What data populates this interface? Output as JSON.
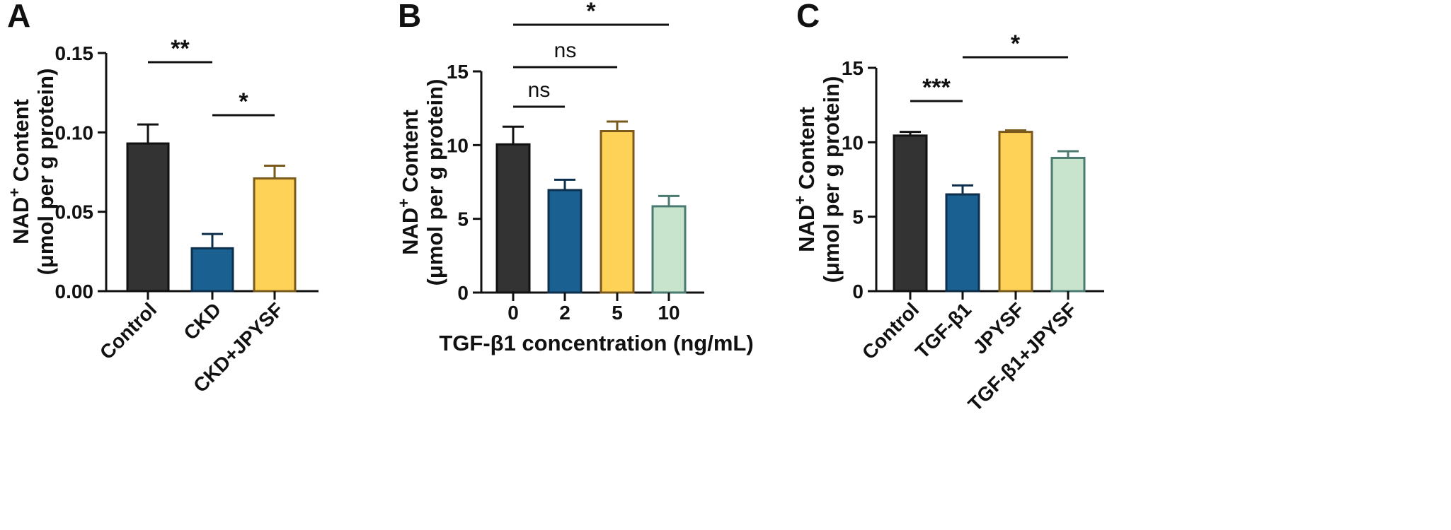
{
  "colors": {
    "dark": "#333333",
    "blue": "#1a6192",
    "yellow": "#fdd257",
    "green": "#c9e4cd"
  },
  "chart_data": [
    {
      "panel": "A",
      "type": "bar",
      "categories": [
        "Control",
        "CKD",
        "CKD+JPYSF"
      ],
      "values": [
        0.093,
        0.027,
        0.071
      ],
      "errors": [
        0.012,
        0.009,
        0.008
      ],
      "colors": [
        "#333333",
        "#1a6192",
        "#fdd257"
      ],
      "ylabel_line1": "NAD",
      "ylabel_sup": "+",
      "ylabel_line1_rest": " Content",
      "ylabel_line2": "(μmol per g protein)",
      "xlabel": "",
      "ylim": [
        0,
        0.15
      ],
      "yticks": [
        "0.00",
        "0.05",
        "0.10",
        "0.15"
      ],
      "significance": [
        {
          "from": 0,
          "to": 1,
          "label": "**"
        },
        {
          "from": 1,
          "to": 2,
          "label": "*"
        }
      ]
    },
    {
      "panel": "B",
      "type": "bar",
      "categories": [
        "0",
        "2",
        "5",
        "10"
      ],
      "values": [
        10.05,
        6.95,
        10.95,
        5.85
      ],
      "errors": [
        1.2,
        0.7,
        0.65,
        0.7
      ],
      "colors": [
        "#333333",
        "#1a6192",
        "#fdd257",
        "#c9e4cd"
      ],
      "ylabel_line1": "NAD",
      "ylabel_sup": "+",
      "ylabel_line1_rest": " Content",
      "ylabel_line2": "(μmol per g protein)",
      "xlabel": "TGF-β1 concentration (ng/mL)",
      "ylim": [
        0,
        15
      ],
      "yticks": [
        "0",
        "5",
        "10",
        "15"
      ],
      "significance": [
        {
          "from": 0,
          "to": 1,
          "label": "ns"
        },
        {
          "from": 0,
          "to": 2,
          "label": "ns"
        },
        {
          "from": 0,
          "to": 3,
          "label": "*"
        }
      ]
    },
    {
      "panel": "C",
      "type": "bar",
      "categories": [
        "Control",
        "TGF-β1",
        "JPYSF",
        "TGF-β1+JPYSF"
      ],
      "values": [
        10.45,
        6.5,
        10.7,
        8.95
      ],
      "errors": [
        0.25,
        0.6,
        0.1,
        0.45
      ],
      "colors": [
        "#333333",
        "#1a6192",
        "#fdd257",
        "#c9e4cd"
      ],
      "ylabel_line1": "NAD",
      "ylabel_sup": "+",
      "ylabel_line1_rest": " Content",
      "ylabel_line2": "(μmol per g protein)",
      "xlabel": "",
      "ylim": [
        0,
        15
      ],
      "yticks": [
        "0",
        "5",
        "10",
        "15"
      ],
      "significance": [
        {
          "from": 0,
          "to": 1,
          "label": "***"
        },
        {
          "from": 1,
          "to": 3,
          "label": "*"
        }
      ]
    }
  ]
}
